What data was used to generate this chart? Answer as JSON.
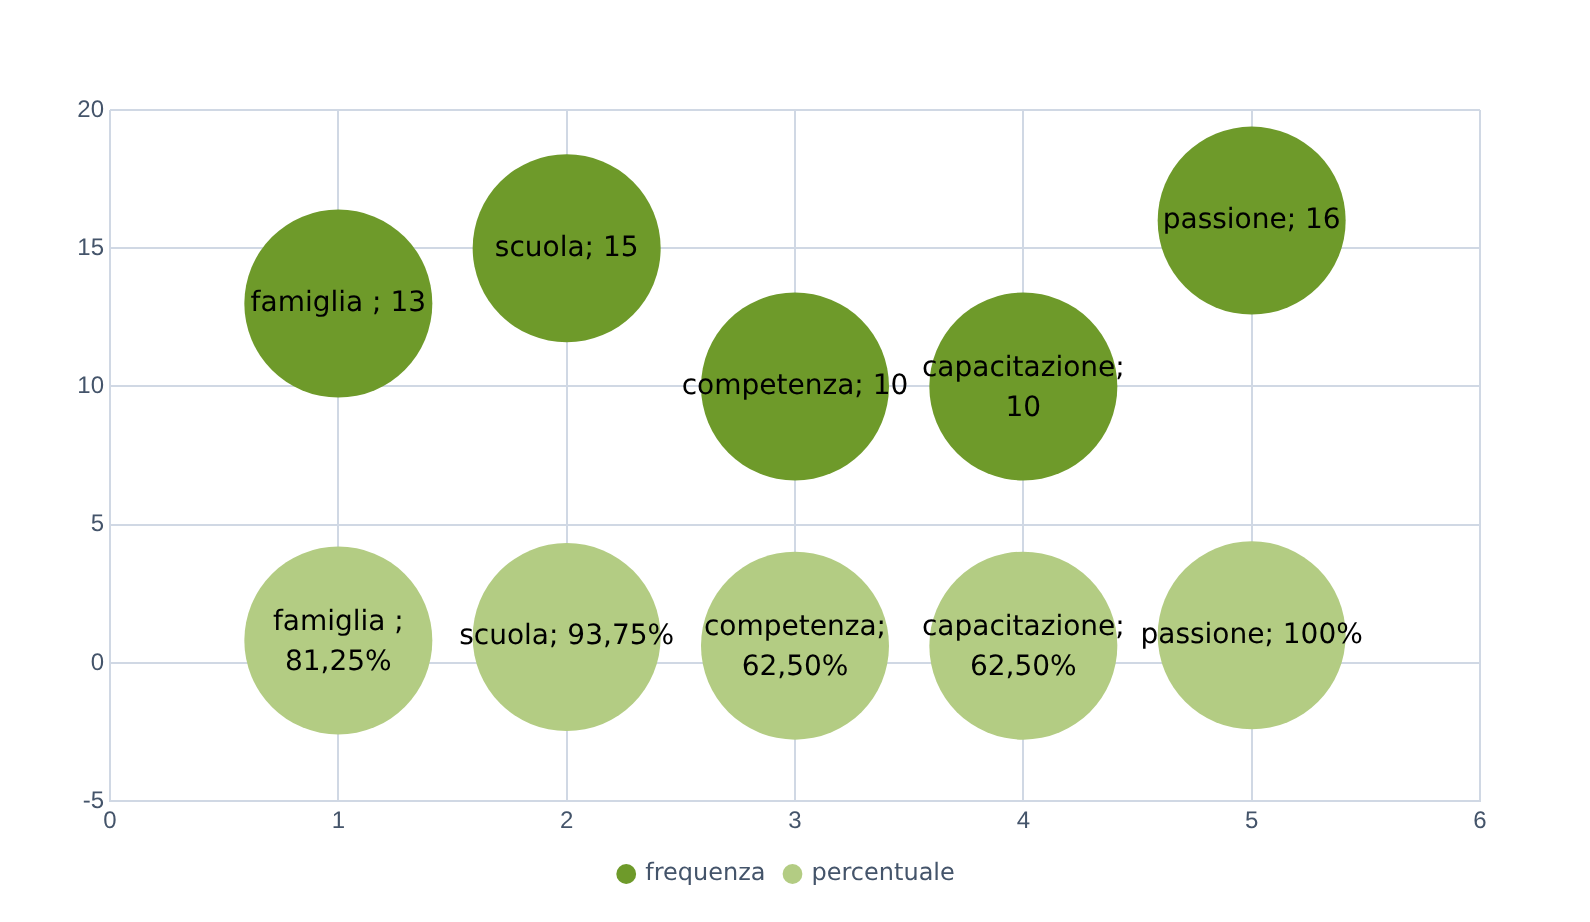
{
  "chart_data": {
    "type": "bubble",
    "x": [
      1,
      2,
      3,
      4,
      5
    ],
    "series": [
      {
        "name": "frequenza",
        "color": "#6e9a2a",
        "values": [
          13,
          15,
          10,
          10,
          16
        ],
        "sizes": [
          1,
          1,
          1,
          1,
          1
        ],
        "value_labels": [
          "famiglia ; 13",
          "scuola; 15",
          "competenza; 10",
          "capacitazione; 10",
          "passione; 16"
        ]
      },
      {
        "name": "percentuale",
        "color": "#b3cc83",
        "values": [
          0.8125,
          0.9375,
          0.625,
          0.625,
          1
        ],
        "sizes": [
          1,
          1,
          1,
          1,
          1
        ],
        "value_labels": [
          "famiglia ; 81,25%",
          "scuola; 93,75%",
          "competenza; 62,50%",
          "capacitazione; 62,50%",
          "passione; 100%"
        ]
      }
    ],
    "xlim": [
      0,
      6
    ],
    "xticks": [
      0,
      1,
      2,
      3,
      4,
      5,
      6
    ],
    "ylim": [
      -5,
      20
    ],
    "yticks": [
      -5,
      0,
      5,
      10,
      15,
      20
    ],
    "grid": true,
    "legend": "bottom"
  }
}
